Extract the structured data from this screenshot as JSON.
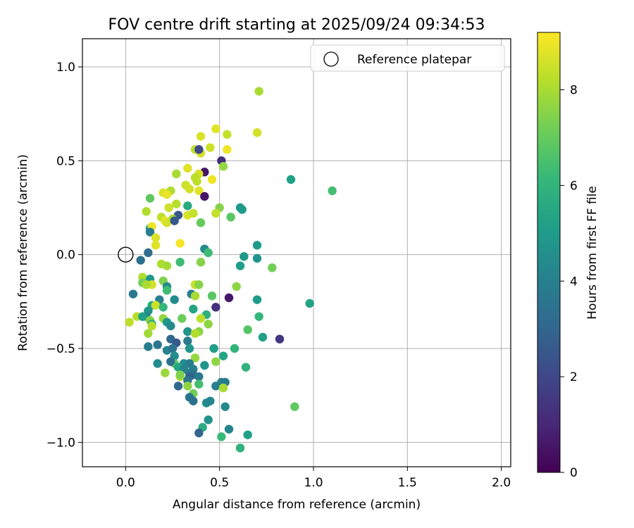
{
  "chart_data": {
    "type": "scatter",
    "title": "FOV centre drift starting at 2025/09/24 09:34:53",
    "xlabel": "Angular distance from reference (arcmin)",
    "ylabel": "Rotation from reference (arcmin)",
    "xlim": [
      -0.23,
      2.05
    ],
    "ylim": [
      -1.13,
      1.15
    ],
    "xticks": [
      0.0,
      0.5,
      1.0,
      1.5,
      2.0
    ],
    "xtick_labels": [
      "0.0",
      "0.5",
      "1.0",
      "1.5",
      "2.0"
    ],
    "yticks": [
      -1.0,
      -0.5,
      0.0,
      0.5,
      1.0
    ],
    "ytick_labels": [
      "−1.0",
      "−0.5",
      "0.0",
      "0.5",
      "1.0"
    ],
    "grid": true,
    "legend": {
      "label": "Reference platepar",
      "placement": "top-right"
    },
    "reference_point": {
      "x": 0.0,
      "y": 0.0
    },
    "colorbar": {
      "label": "Hours from first FF file",
      "colormap": "viridis",
      "range": [
        0,
        9.2
      ],
      "ticks": [
        0,
        2,
        4,
        6,
        8
      ],
      "tick_labels": [
        "0",
        "2",
        "4",
        "6",
        "8"
      ]
    },
    "points": [
      [
        0.71,
        0.87,
        8.0
      ],
      [
        0.48,
        0.67,
        8.8
      ],
      [
        0.7,
        0.65,
        8.6
      ],
      [
        0.54,
        0.64,
        8.4
      ],
      [
        0.4,
        0.63,
        8.7
      ],
      [
        0.45,
        0.57,
        8.5
      ],
      [
        0.37,
        0.56,
        8.3
      ],
      [
        0.54,
        0.56,
        9.0
      ],
      [
        0.4,
        0.54,
        8.6
      ],
      [
        0.39,
        0.56,
        2.0
      ],
      [
        0.51,
        0.5,
        1.2
      ],
      [
        0.52,
        0.47,
        7.7
      ],
      [
        0.33,
        0.46,
        8.8
      ],
      [
        0.42,
        0.44,
        0.5
      ],
      [
        0.27,
        0.43,
        8.0
      ],
      [
        0.39,
        0.43,
        8.6
      ],
      [
        0.37,
        0.41,
        8.2
      ],
      [
        0.46,
        0.4,
        9.0
      ],
      [
        0.38,
        0.39,
        8.3
      ],
      [
        0.32,
        0.37,
        8.5
      ],
      [
        0.88,
        0.4,
        5.2
      ],
      [
        1.1,
        0.34,
        6.4
      ],
      [
        0.34,
        0.35,
        8.6
      ],
      [
        0.24,
        0.34,
        8.1
      ],
      [
        0.2,
        0.33,
        8.7
      ],
      [
        0.39,
        0.34,
        8.8
      ],
      [
        0.22,
        0.32,
        8.9
      ],
      [
        0.13,
        0.3,
        6.9
      ],
      [
        0.42,
        0.31,
        0.5
      ],
      [
        0.27,
        0.27,
        8.2
      ],
      [
        0.33,
        0.26,
        5.6
      ],
      [
        0.23,
        0.25,
        8.5
      ],
      [
        0.5,
        0.25,
        7.5
      ],
      [
        0.61,
        0.25,
        4.9
      ],
      [
        0.62,
        0.24,
        5.0
      ],
      [
        0.11,
        0.23,
        8.1
      ],
      [
        0.48,
        0.22,
        8.4
      ],
      [
        0.33,
        0.21,
        8.7
      ],
      [
        0.36,
        0.22,
        8.4
      ],
      [
        0.28,
        0.21,
        2.5
      ],
      [
        0.19,
        0.2,
        8.3
      ],
      [
        0.25,
        0.19,
        8.0
      ],
      [
        0.21,
        0.18,
        8.9
      ],
      [
        0.22,
        0.17,
        8.6
      ],
      [
        0.26,
        0.18,
        2.6
      ],
      [
        0.56,
        0.2,
        6.8
      ],
      [
        0.4,
        0.17,
        7.0
      ],
      [
        0.13,
        0.14,
        5.0
      ],
      [
        0.14,
        0.15,
        9.0
      ],
      [
        0.13,
        0.12,
        3.9
      ],
      [
        0.16,
        0.09,
        8.7
      ],
      [
        0.29,
        0.06,
        9.1
      ],
      [
        0.16,
        0.05,
        8.8
      ],
      [
        0.42,
        0.03,
        4.4
      ],
      [
        0.7,
        0.05,
        5.0
      ],
      [
        0.44,
        0.01,
        6.3
      ],
      [
        0.12,
        0.01,
        3.3
      ],
      [
        0.63,
        -0.01,
        5.0
      ],
      [
        0.7,
        -0.02,
        4.8
      ],
      [
        0.08,
        -0.03,
        3.4
      ],
      [
        0.29,
        -0.04,
        6.3
      ],
      [
        0.4,
        -0.04,
        7.5
      ],
      [
        0.19,
        -0.05,
        8.1
      ],
      [
        0.22,
        -0.06,
        7.9
      ],
      [
        0.61,
        -0.06,
        5.1
      ],
      [
        0.78,
        -0.07,
        7.2
      ],
      [
        0.09,
        -0.12,
        8.1
      ],
      [
        0.13,
        -0.13,
        4.9
      ],
      [
        0.2,
        -0.14,
        7.4
      ],
      [
        0.09,
        -0.15,
        7.2
      ],
      [
        0.14,
        -0.16,
        8.6
      ],
      [
        0.37,
        -0.16,
        8.4
      ],
      [
        0.39,
        -0.16,
        7.5
      ],
      [
        0.11,
        -0.16,
        8.0
      ],
      [
        0.22,
        -0.17,
        4.4
      ],
      [
        0.59,
        -0.17,
        7.6
      ],
      [
        0.22,
        -0.19,
        6.3
      ],
      [
        0.35,
        -0.21,
        3.9
      ],
      [
        0.04,
        -0.21,
        3.7
      ],
      [
        0.37,
        -0.22,
        8.0
      ],
      [
        0.46,
        -0.22,
        6.8
      ],
      [
        0.55,
        -0.23,
        0.6
      ],
      [
        0.7,
        -0.24,
        5.0
      ],
      [
        0.26,
        -0.24,
        4.4
      ],
      [
        0.18,
        -0.24,
        4.0
      ],
      [
        0.14,
        -0.27,
        5.6
      ],
      [
        0.16,
        -0.27,
        8.5
      ],
      [
        0.2,
        -0.28,
        6.1
      ],
      [
        0.48,
        -0.28,
        1.3
      ],
      [
        0.36,
        -0.29,
        5.4
      ],
      [
        0.12,
        -0.3,
        4.8
      ],
      [
        0.98,
        -0.26,
        5.3
      ],
      [
        0.43,
        -0.32,
        5.8
      ],
      [
        0.11,
        -0.33,
        4.2
      ],
      [
        0.06,
        -0.33,
        8.2
      ],
      [
        0.09,
        -0.33,
        5.2
      ],
      [
        0.2,
        -0.34,
        7.7
      ],
      [
        0.3,
        -0.34,
        7.1
      ],
      [
        0.4,
        -0.34,
        8.3
      ],
      [
        0.71,
        -0.33,
        6.1
      ],
      [
        0.13,
        -0.35,
        7.5
      ],
      [
        0.22,
        -0.36,
        4.9
      ],
      [
        0.44,
        -0.37,
        7.6
      ],
      [
        0.02,
        -0.36,
        8.3
      ],
      [
        0.14,
        -0.37,
        5.8
      ],
      [
        0.14,
        -0.38,
        8.2
      ],
      [
        0.24,
        -0.38,
        4.3
      ],
      [
        0.39,
        -0.41,
        7.6
      ],
      [
        0.33,
        -0.41,
        4.7
      ],
      [
        0.37,
        -0.42,
        8.1
      ],
      [
        0.65,
        -0.4,
        6.7
      ],
      [
        0.12,
        -0.42,
        7.9
      ],
      [
        0.73,
        -0.44,
        5.2
      ],
      [
        0.82,
        -0.45,
        1.5
      ],
      [
        0.24,
        -0.45,
        3.1
      ],
      [
        0.33,
        -0.46,
        3.8
      ],
      [
        0.27,
        -0.47,
        2.6
      ],
      [
        0.17,
        -0.48,
        3.6
      ],
      [
        0.12,
        -0.49,
        3.9
      ],
      [
        0.22,
        -0.51,
        4.1
      ],
      [
        0.25,
        -0.5,
        3.5
      ],
      [
        0.34,
        -0.5,
        4.8
      ],
      [
        0.47,
        -0.5,
        5.1
      ],
      [
        0.58,
        -0.5,
        6.0
      ],
      [
        0.52,
        -0.54,
        5.4
      ],
      [
        0.26,
        -0.54,
        4.5
      ],
      [
        0.37,
        -0.55,
        7.7
      ],
      [
        0.48,
        -0.57,
        7.6
      ],
      [
        0.17,
        -0.58,
        4.4
      ],
      [
        0.26,
        -0.58,
        6.9
      ],
      [
        0.31,
        -0.58,
        4.5
      ],
      [
        0.34,
        -0.58,
        3.8
      ],
      [
        0.42,
        -0.59,
        4.8
      ],
      [
        0.24,
        -0.57,
        3.4
      ],
      [
        0.28,
        -0.6,
        5.4
      ],
      [
        0.31,
        -0.61,
        4.2
      ],
      [
        0.36,
        -0.61,
        4.0
      ],
      [
        0.64,
        -0.6,
        5.9
      ],
      [
        0.34,
        -0.63,
        3.9
      ],
      [
        0.29,
        -0.65,
        8.1
      ],
      [
        0.21,
        -0.63,
        7.8
      ],
      [
        0.29,
        -0.64,
        7.4
      ],
      [
        0.36,
        -0.64,
        3.4
      ],
      [
        0.39,
        -0.65,
        3.8
      ],
      [
        0.34,
        -0.65,
        2.9
      ],
      [
        0.33,
        -0.67,
        3.6
      ],
      [
        0.51,
        -0.68,
        4.1
      ],
      [
        0.53,
        -0.68,
        3.8
      ],
      [
        0.39,
        -0.69,
        6.4
      ],
      [
        0.28,
        -0.7,
        3.1
      ],
      [
        0.33,
        -0.7,
        7.6
      ],
      [
        0.48,
        -0.7,
        4.0
      ],
      [
        0.52,
        -0.71,
        8.0
      ],
      [
        0.36,
        -0.74,
        7.2
      ],
      [
        0.34,
        -0.76,
        3.6
      ],
      [
        0.36,
        -0.78,
        3.4
      ],
      [
        0.43,
        -0.79,
        4.5
      ],
      [
        0.45,
        -0.78,
        4.2
      ],
      [
        0.53,
        -0.81,
        4.3
      ],
      [
        0.9,
        -0.81,
        6.9
      ],
      [
        0.44,
        -0.88,
        4.7
      ],
      [
        0.41,
        -0.92,
        5.7
      ],
      [
        0.55,
        -0.93,
        4.2
      ],
      [
        0.39,
        -0.95,
        3.0
      ],
      [
        0.65,
        -0.96,
        5.2
      ],
      [
        0.51,
        -0.97,
        6.2
      ],
      [
        0.61,
        -1.03,
        5.9
      ]
    ]
  }
}
